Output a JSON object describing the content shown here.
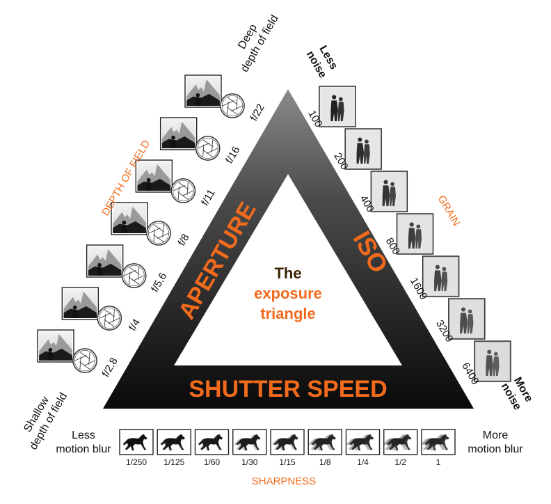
{
  "center": {
    "line1": "The",
    "line2": "exposure",
    "line3": "triangle"
  },
  "sides": {
    "aperture": "APERTURE",
    "iso": "ISO",
    "shutter": "SHUTTER SPEED"
  },
  "aperture_axis": {
    "category": "DEPTH OF FIELD",
    "start_label": [
      "Shallow",
      "depth of field"
    ],
    "end_label": [
      "Deep",
      "depth of field"
    ],
    "stops": [
      "f/2.8",
      "f/4",
      "f/5.6",
      "f/8",
      "f/11",
      "f/16",
      "f/22"
    ]
  },
  "iso_axis": {
    "category": "GRAIN",
    "start_label": [
      "Less",
      "noise"
    ],
    "end_label": [
      "More",
      "noise"
    ],
    "values": [
      "100",
      "200",
      "400",
      "800",
      "1600",
      "3200",
      "6400"
    ]
  },
  "shutter_axis": {
    "category": "SHARPNESS",
    "start_label": [
      "Less",
      "motion blur"
    ],
    "end_label": [
      "More",
      "motion blur"
    ],
    "values": [
      "1/250",
      "1/125",
      "1/60",
      "1/30",
      "1/15",
      "1/8",
      "1/4",
      "1/2",
      "1"
    ]
  },
  "colors": {
    "accent": "#f26b1d",
    "center_text": "#3a2200"
  },
  "icons": {
    "aperture": "aperture-icon",
    "mountain_photo": "mountain-photo-icon",
    "people_photo": "people-photo-icon",
    "horse": "horse-icon"
  }
}
